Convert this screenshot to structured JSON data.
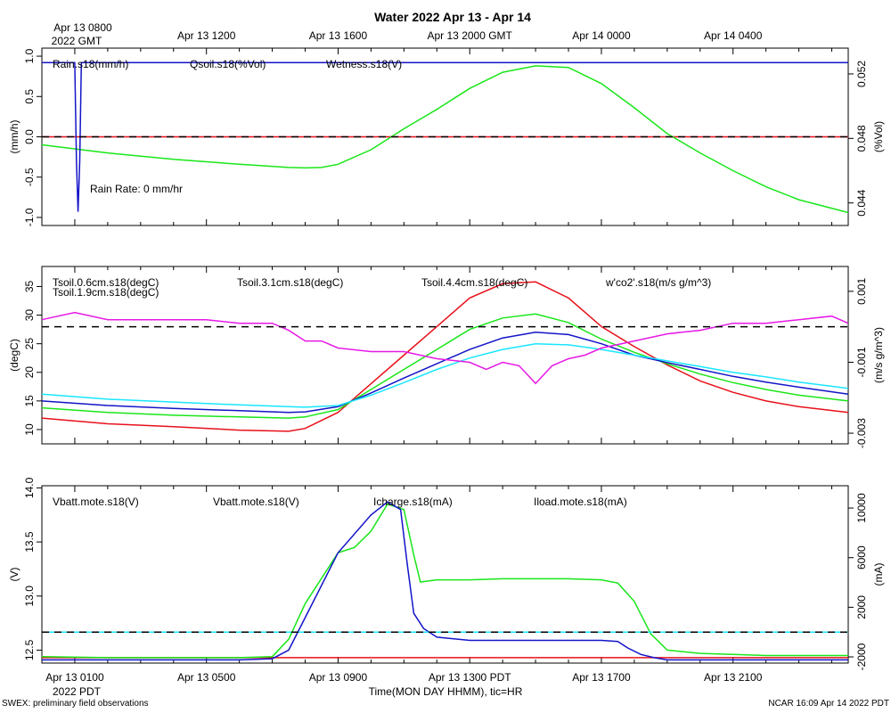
{
  "title": "Water 2022 Apr 13 - Apr 14",
  "top_axis": {
    "origin_labels": [
      "Apr 13 0800",
      "2022 GMT"
    ],
    "ticks": [
      {
        "hour": 0,
        "label": ""
      },
      {
        "hour": 4,
        "label": "Apr 13 1200"
      },
      {
        "hour": 8,
        "label": "Apr 13 1600"
      },
      {
        "hour": 12,
        "label": "Apr 13 2000 GMT"
      },
      {
        "hour": 16,
        "label": "Apr 14 0000"
      },
      {
        "hour": 20,
        "label": "Apr 14 0400"
      }
    ]
  },
  "bottom_axis": {
    "origin_label": "2022 PDT",
    "xlabel": "Time(MON DAY HHMM), tic=HR",
    "ticks": [
      {
        "hour": 0,
        "label": "Apr 13 0100"
      },
      {
        "hour": 4,
        "label": "Apr 13 0500"
      },
      {
        "hour": 8,
        "label": "Apr 13 0900"
      },
      {
        "hour": 12,
        "label": "Apr 13 1300 PDT"
      },
      {
        "hour": 16,
        "label": "Apr 13 1700"
      },
      {
        "hour": 20,
        "label": "Apr 13 2100"
      }
    ]
  },
  "footer": {
    "left": "SWEX: preliminary field observations",
    "right": "NCAR 16:09 Apr 14 2022 PDT"
  },
  "colors": {
    "red": "#e8101a",
    "green": "#19e619",
    "blue": "#1414c8",
    "cyan": "#19e6ff",
    "magenta": "#e619e6",
    "black": "#000000"
  },
  "chart_data": [
    {
      "type": "line",
      "name": "water",
      "xlim_hours": [
        -1,
        23.5
      ],
      "left_axis": {
        "label": "(mm/h)",
        "ylim": [
          -1.1,
          1.1
        ],
        "ticks": [
          -1.0,
          -0.5,
          0.0,
          0.5,
          1.0
        ],
        "tick_labels": [
          "-1.0",
          "-0.5",
          "0.0",
          "0.5",
          "1.0"
        ]
      },
      "right_axis": {
        "label": "(%Vol)",
        "ylim": [
          0.0426,
          0.0536
        ],
        "ticks": [
          0.044,
          0.048,
          0.052
        ],
        "tick_labels": [
          "0.044",
          "0.048",
          "0.052"
        ]
      },
      "zero_line": {
        "axis": "left",
        "y": 0.0
      },
      "legend": [
        "Rain.s18(mm/h)",
        "Qsoil.s18(%Vol)",
        "Wetness.s18(V)"
      ],
      "annotation": "Rain Rate: 0 mm/hr",
      "series": [
        {
          "name": "Rain.s18(mm/h)",
          "color": "red",
          "axis": "left",
          "x": [
            -1,
            23.5
          ],
          "y": [
            0.0,
            0.0
          ]
        },
        {
          "name": "Qsoil.s18(%Vol)",
          "color": "green",
          "axis": "right",
          "x": [
            -1,
            1,
            3,
            5,
            6.5,
            7,
            7.5,
            8,
            9,
            10,
            11,
            12,
            13,
            14,
            15,
            16,
            17,
            18,
            19,
            20,
            21,
            22,
            23.5
          ],
          "y": [
            0.0476,
            0.0471,
            0.0467,
            0.0464,
            0.0462,
            0.04617,
            0.0462,
            0.0464,
            0.0473,
            0.0486,
            0.0498,
            0.0511,
            0.0521,
            0.0525,
            0.0524,
            0.0514,
            0.0499,
            0.0483,
            0.0471,
            0.046,
            0.045,
            0.0442,
            0.0434
          ]
        },
        {
          "name": "Wetness.s18(V)",
          "color": "blue",
          "axis": "left",
          "x": [
            -1,
            0.0,
            0.05,
            0.1,
            0.15,
            0.2,
            23.5
          ],
          "y": [
            0.92,
            0.92,
            -0.3,
            -0.93,
            -0.3,
            0.92,
            0.92
          ]
        }
      ]
    },
    {
      "type": "line",
      "name": "soil-temperature",
      "xlim_hours": [
        -1,
        23.5
      ],
      "left_axis": {
        "label": "(degC)",
        "ylim": [
          7.5,
          38.5
        ],
        "ticks": [
          10,
          15,
          20,
          25,
          30,
          35
        ],
        "tick_labels": [
          "10",
          "15",
          "20",
          "25",
          "30",
          "35"
        ]
      },
      "right_axis": {
        "label": "(m/s g/m^3)",
        "ylim": [
          -0.0033,
          0.0017
        ],
        "ticks": [
          -0.003,
          -0.001,
          0.001
        ],
        "tick_labels": [
          "-0.003",
          "-0.001",
          "0.001"
        ]
      },
      "zero_line": {
        "axis": "right",
        "y": 0.0
      },
      "legend": [
        "Tsoil.0.6cm.s18(degC)",
        "Tsoil.1.9cm.s18(degC)",
        "Tsoil.3.1cm.s18(degC)",
        "Tsoil.4.4cm.s18(degC)",
        "w'co2'.s18(m/s g/m^3)"
      ],
      "series": [
        {
          "name": "Tsoil.0.6cm.s18(degC)",
          "color": "red",
          "axis": "left",
          "x": [
            -1,
            1,
            3,
            5,
            6.5,
            7,
            8,
            9,
            10,
            11,
            12,
            13,
            14,
            15,
            16,
            17,
            18,
            19,
            20,
            21,
            22,
            23.5
          ],
          "y": [
            12,
            11,
            10.5,
            9.9,
            9.7,
            10.2,
            13,
            18,
            23,
            28,
            33,
            35.5,
            35.8,
            33,
            28,
            24.5,
            21.3,
            18.5,
            16.5,
            15,
            14,
            13
          ]
        },
        {
          "name": "Tsoil.1.9cm.s18(degC)",
          "color": "green",
          "axis": "left",
          "x": [
            -1,
            1,
            3,
            5,
            6.5,
            7,
            8,
            9,
            10,
            11,
            12,
            13,
            14,
            15,
            16,
            17,
            18,
            19,
            20,
            21,
            22,
            23.5
          ],
          "y": [
            13.8,
            13,
            12.5,
            12.2,
            12,
            12.2,
            13.5,
            17,
            20.5,
            24,
            27.5,
            29.5,
            30.2,
            28.7,
            25.8,
            23.5,
            21.5,
            19.7,
            18.2,
            17,
            16,
            15
          ]
        },
        {
          "name": "Tsoil.3.1cm.s18(degC)",
          "color": "blue",
          "axis": "left",
          "x": [
            -1,
            1,
            3,
            5,
            6.5,
            7,
            8,
            9,
            10,
            11,
            12,
            13,
            14,
            15,
            16,
            17,
            18,
            19,
            20,
            21,
            22,
            23.5
          ],
          "y": [
            15,
            14.2,
            13.7,
            13.3,
            13,
            13.1,
            14,
            16.4,
            19,
            21.5,
            24,
            26,
            27,
            26.6,
            25,
            23,
            21.7,
            20.5,
            19.3,
            18.3,
            17.4,
            16.2
          ]
        },
        {
          "name": "Tsoil.4.4cm.s18(degC)",
          "color": "cyan",
          "axis": "left",
          "x": [
            -1,
            1,
            3,
            5,
            6.5,
            7,
            8,
            9,
            10,
            11,
            12,
            13,
            14,
            15,
            16,
            17,
            18,
            19,
            20,
            21,
            22,
            23.5
          ],
          "y": [
            16.2,
            15.3,
            14.8,
            14.3,
            14,
            13.9,
            14.2,
            16,
            18.2,
            20.5,
            22.5,
            24,
            25,
            24.8,
            24,
            23,
            22,
            21,
            20,
            19.2,
            18.3,
            17.2
          ]
        },
        {
          "name": "w'co2'.s18(m/s g/m^3)",
          "color": "magenta",
          "axis": "right",
          "x": [
            -1,
            0,
            1,
            2,
            3,
            4,
            5,
            6,
            6.5,
            7,
            7.5,
            8,
            9,
            10,
            11,
            12,
            12.5,
            13,
            13.5,
            14,
            14.5,
            15,
            15.5,
            16,
            17,
            18,
            19,
            20,
            21,
            22,
            23,
            23.5
          ],
          "y": [
            0.0002,
            0.0004,
            0.0002,
            0.0002,
            0.0002,
            0.0002,
            0.0001,
            0.0001,
            -0.0001,
            -0.0004,
            -0.0004,
            -0.0006,
            -0.0007,
            -0.0007,
            -0.0009,
            -0.001,
            -0.0012,
            -0.001,
            -0.0011,
            -0.0016,
            -0.0011,
            -0.0009,
            -0.0008,
            -0.0006,
            -0.0004,
            -0.0002,
            -0.0001,
            0.0001,
            0.0001,
            0.0002,
            0.0003,
            0.0001
          ]
        }
      ]
    },
    {
      "type": "line",
      "name": "battery",
      "xlim_hours": [
        -1,
        23.5
      ],
      "left_axis": {
        "label": "(V)",
        "ylim": [
          12.38,
          14.02
        ],
        "ticks": [
          12.5,
          13.0,
          13.5,
          14.0
        ],
        "tick_labels": [
          "12.5",
          "13.0",
          "13.5",
          "14.0"
        ]
      },
      "right_axis": {
        "label": "(mA)",
        "ylim": [
          -2500,
          11800
        ],
        "ticks": [
          -2000,
          2000,
          6000,
          10000
        ],
        "tick_labels": [
          "-2000",
          "2000",
          "6000",
          "10000"
        ]
      },
      "zero_line": {
        "axis": "right",
        "y": 0
      },
      "legend": [
        "Vbatt.mote.s18(V)",
        "Vbatt.mote.s18(V)",
        "Icharge.s18(mA)",
        "Iload.mote.s18(mA)"
      ],
      "series": [
        {
          "name": "Vbatt.mote.s18(V)",
          "color": "red",
          "axis": "left",
          "x": [
            -1,
            23.5
          ],
          "y": [
            12.43,
            12.43
          ]
        },
        {
          "name": "Vbatt.mote.s18(V) (green)",
          "color": "green",
          "axis": "left",
          "x": [
            -1,
            1,
            3,
            5,
            6,
            6.5,
            7,
            8,
            8.5,
            9,
            9.5,
            10,
            10.3,
            10.5,
            11,
            12,
            13,
            14,
            15,
            16,
            16.5,
            17,
            17.5,
            18,
            19,
            20,
            21,
            22,
            23.5
          ],
          "y": [
            12.44,
            12.43,
            12.43,
            12.43,
            12.44,
            12.6,
            12.93,
            13.4,
            13.45,
            13.6,
            13.85,
            13.8,
            13.38,
            13.13,
            13.15,
            13.15,
            13.16,
            13.16,
            13.16,
            13.15,
            13.12,
            12.95,
            12.65,
            12.5,
            12.47,
            12.46,
            12.45,
            12.45,
            12.45
          ]
        },
        {
          "name": "Icharge.s18(mA)",
          "color": "blue",
          "axis": "left",
          "x": [
            -1,
            1,
            3,
            5,
            6,
            6.5,
            7,
            8,
            9,
            9.5,
            9.9,
            10.1,
            10.3,
            10.6,
            11,
            12,
            13,
            14,
            15,
            16,
            16.5,
            16.8,
            17.2,
            17.6,
            18,
            19,
            20,
            21,
            22,
            23.5
          ],
          "y": [
            12.41,
            12.41,
            12.41,
            12.41,
            12.42,
            12.5,
            12.8,
            13.4,
            13.75,
            13.87,
            13.8,
            13.3,
            12.84,
            12.7,
            12.62,
            12.59,
            12.59,
            12.59,
            12.59,
            12.59,
            12.58,
            12.52,
            12.46,
            12.43,
            12.41,
            12.41,
            12.41,
            12.41,
            12.41,
            12.41
          ]
        },
        {
          "name": "Iload.mote.s18(mA)",
          "color": "cyan",
          "axis": "right",
          "x": [
            -1,
            23.5
          ],
          "y": [
            0,
            0
          ]
        }
      ]
    }
  ]
}
